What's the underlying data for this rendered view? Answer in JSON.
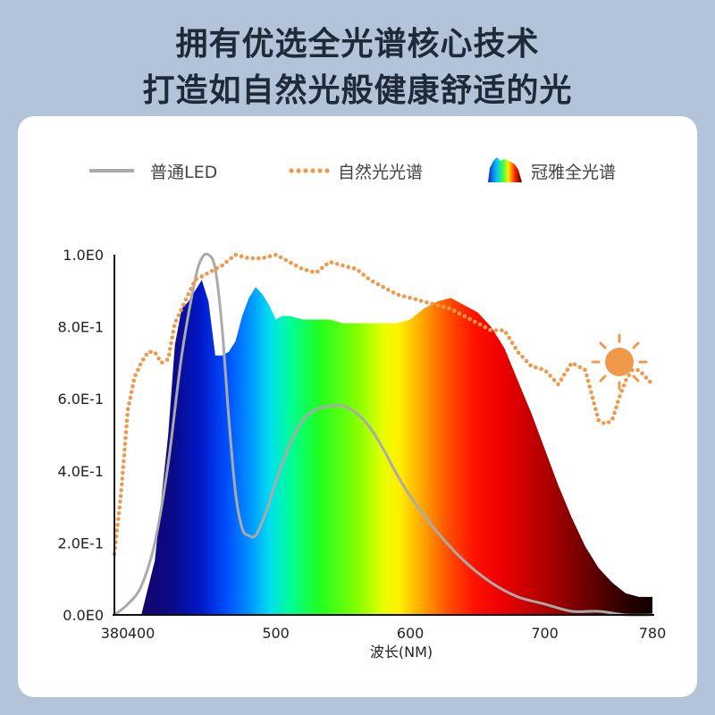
{
  "header": {
    "line1": "拥有优选全光谱核心技术",
    "line2": "打造如自然光般健康舒适的光"
  },
  "legend": [
    {
      "label": "普通LED",
      "style": "solid-gray",
      "icon": "gray-line"
    },
    {
      "label": "自然光光谱",
      "style": "dotted-orange",
      "icon": "orange-dots"
    },
    {
      "label": "冠雅全光谱",
      "style": "rainbow-fill",
      "icon": "spectrum-swatch"
    }
  ],
  "colors": {
    "led": "#aaaaaa",
    "natural": "#ef9a4a",
    "sun": "#ef9a4a",
    "background": "#b3c3d8",
    "card": "#ffffff"
  },
  "chart_data": {
    "type": "area",
    "xlabel": "波长(NM)",
    "xlim": [
      380,
      780
    ],
    "ylim": [
      0,
      1.0
    ],
    "x_ticks": [
      380,
      400,
      500,
      600,
      700,
      780
    ],
    "x_tick_labels": [
      "380",
      "400",
      "500",
      "600",
      "700",
      "780"
    ],
    "y_ticks": [
      0,
      0.2,
      0.4,
      0.6,
      0.8,
      1.0
    ],
    "y_tick_labels": [
      "0.0E0",
      "2.0E-1",
      "4.0E-1",
      "6.0E-1",
      "8.0E-1",
      "1.0E0"
    ],
    "series": [
      {
        "name": "冠雅全光谱",
        "type": "area",
        "x": [
          400,
          410,
          420,
          425,
          430,
          435,
          440,
          445,
          450,
          455,
          460,
          465,
          470,
          475,
          480,
          485,
          490,
          495,
          500,
          505,
          510,
          520,
          530,
          540,
          550,
          560,
          570,
          580,
          590,
          600,
          610,
          620,
          630,
          640,
          650,
          660,
          670,
          680,
          690,
          700,
          710,
          720,
          730,
          740,
          750,
          760,
          770,
          780
        ],
        "y": [
          0.0,
          0.15,
          0.5,
          0.75,
          0.85,
          0.87,
          0.9,
          0.93,
          0.87,
          0.72,
          0.72,
          0.73,
          0.76,
          0.83,
          0.88,
          0.91,
          0.89,
          0.86,
          0.82,
          0.83,
          0.83,
          0.82,
          0.82,
          0.82,
          0.81,
          0.81,
          0.81,
          0.81,
          0.81,
          0.82,
          0.85,
          0.87,
          0.88,
          0.86,
          0.84,
          0.8,
          0.74,
          0.65,
          0.56,
          0.46,
          0.36,
          0.27,
          0.19,
          0.13,
          0.09,
          0.06,
          0.05,
          0.05
        ]
      },
      {
        "name": "普通LED",
        "type": "line",
        "x": [
          380,
          390,
          400,
          410,
          420,
          430,
          440,
          445,
          450,
          455,
          460,
          465,
          470,
          475,
          480,
          485,
          490,
          495,
          500,
          510,
          520,
          530,
          540,
          550,
          560,
          570,
          580,
          590,
          600,
          620,
          640,
          660,
          680,
          700,
          720,
          740,
          760,
          780
        ],
        "y": [
          0.0,
          0.03,
          0.08,
          0.2,
          0.42,
          0.72,
          0.93,
          0.99,
          1.0,
          0.96,
          0.8,
          0.55,
          0.34,
          0.24,
          0.22,
          0.22,
          0.26,
          0.31,
          0.37,
          0.47,
          0.54,
          0.57,
          0.58,
          0.58,
          0.56,
          0.52,
          0.46,
          0.39,
          0.33,
          0.23,
          0.15,
          0.09,
          0.05,
          0.03,
          0.01,
          0.01,
          0.0,
          0.0
        ]
      },
      {
        "name": "自然光光谱",
        "type": "dotted-line",
        "x": [
          380,
          385,
          390,
          395,
          400,
          405,
          410,
          415,
          420,
          425,
          430,
          435,
          440,
          450,
          460,
          470,
          480,
          490,
          500,
          510,
          520,
          530,
          540,
          550,
          560,
          570,
          580,
          590,
          600,
          610,
          620,
          630,
          640,
          650,
          660,
          670,
          680,
          690,
          700,
          710,
          720,
          730,
          740,
          745,
          750,
          755,
          760,
          765,
          770,
          775,
          780
        ],
        "y": [
          0.17,
          0.34,
          0.57,
          0.66,
          0.7,
          0.73,
          0.73,
          0.7,
          0.71,
          0.81,
          0.85,
          0.89,
          0.93,
          0.95,
          0.97,
          1.0,
          0.99,
          0.99,
          1.0,
          0.98,
          0.96,
          0.95,
          0.98,
          0.97,
          0.96,
          0.93,
          0.91,
          0.89,
          0.88,
          0.87,
          0.86,
          0.85,
          0.83,
          0.81,
          0.79,
          0.79,
          0.73,
          0.69,
          0.68,
          0.64,
          0.7,
          0.68,
          0.54,
          0.53,
          0.54,
          0.6,
          0.65,
          0.68,
          0.68,
          0.66,
          0.64
        ]
      }
    ]
  }
}
